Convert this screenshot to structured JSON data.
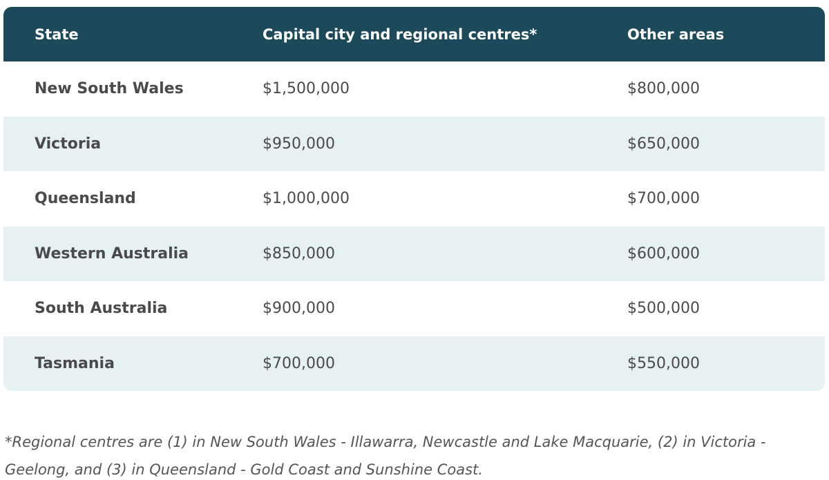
{
  "table": {
    "headers": [
      "State",
      "Capital city and regional centres*",
      "Other areas"
    ],
    "rows": [
      {
        "state": "New South Wales",
        "capital": "$1,500,000",
        "other": "$800,000"
      },
      {
        "state": "Victoria",
        "capital": "$950,000",
        "other": "$650,000"
      },
      {
        "state": "Queensland",
        "capital": "$1,000,000",
        "other": "$700,000"
      },
      {
        "state": "Western Australia",
        "capital": "$850,000",
        "other": "$600,000"
      },
      {
        "state": "South Australia",
        "capital": "$900,000",
        "other": "$500,000"
      },
      {
        "state": "Tasmania",
        "capital": "$700,000",
        "other": "$550,000"
      }
    ]
  },
  "footnote": "*Regional centres are (1) in New South Wales - Illawarra, Newcastle and Lake Macquarie, (2) in Victoria - Geelong, and (3) in Queensland - Gold Coast and Sunshine Coast.",
  "colors": {
    "header_bg": "#1c4a5a",
    "alt_row_bg": "#e6f1f2"
  }
}
